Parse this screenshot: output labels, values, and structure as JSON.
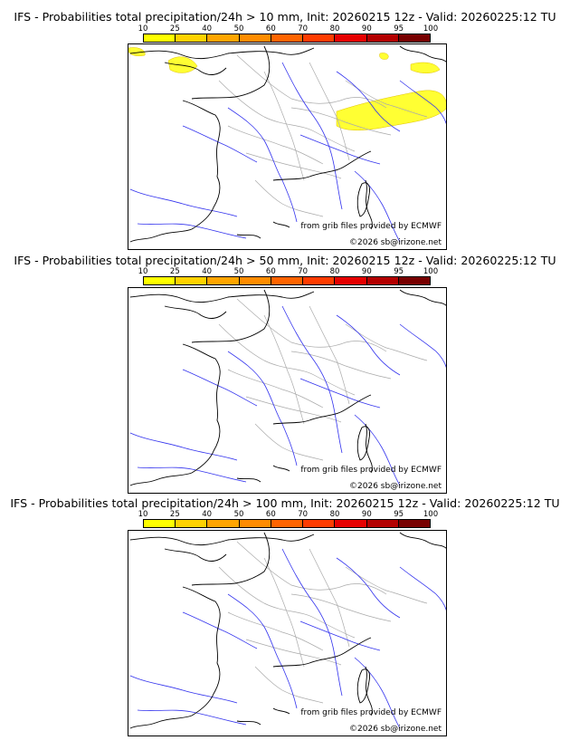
{
  "panels": [
    {
      "title": "IFS - Probabilities total precipitation/24h > 10 mm, Init: 20260215 12z - Valid: 20260225:12 TU",
      "credit_source": "from grib files provided by ECMWF",
      "credit_copyright": "©2026 sb@irizone.net",
      "has_yellow_areas": true
    },
    {
      "title": "IFS - Probabilities total precipitation/24h > 50 mm, Init: 20260215 12z - Valid: 20260225:12 TU",
      "credit_source": "from grib files provided by ECMWF",
      "credit_copyright": "©2026 sb@irizone.net",
      "has_yellow_areas": false
    },
    {
      "title": "IFS - Probabilities total precipitation/24h > 100 mm, Init: 20260215 12z - Valid: 20260225:12 TU",
      "credit_source": "from grib files provided by ECMWF",
      "credit_copyright": "©2026 sb@irizone.net",
      "has_yellow_areas": false
    }
  ],
  "scale": {
    "ticks": [
      "10",
      "25",
      "40",
      "50",
      "60",
      "70",
      "80",
      "90",
      "95",
      "100"
    ],
    "colors": [
      "#ffff00",
      "#ffd200",
      "#ffa500",
      "#ff8c00",
      "#ff6400",
      "#ff3c00",
      "#e60000",
      "#b40000",
      "#780000"
    ]
  },
  "colors": {
    "coast": "#000000",
    "rivers": "#3333ee",
    "borders": "#aaaaaa",
    "precip": "#ffff33"
  }
}
